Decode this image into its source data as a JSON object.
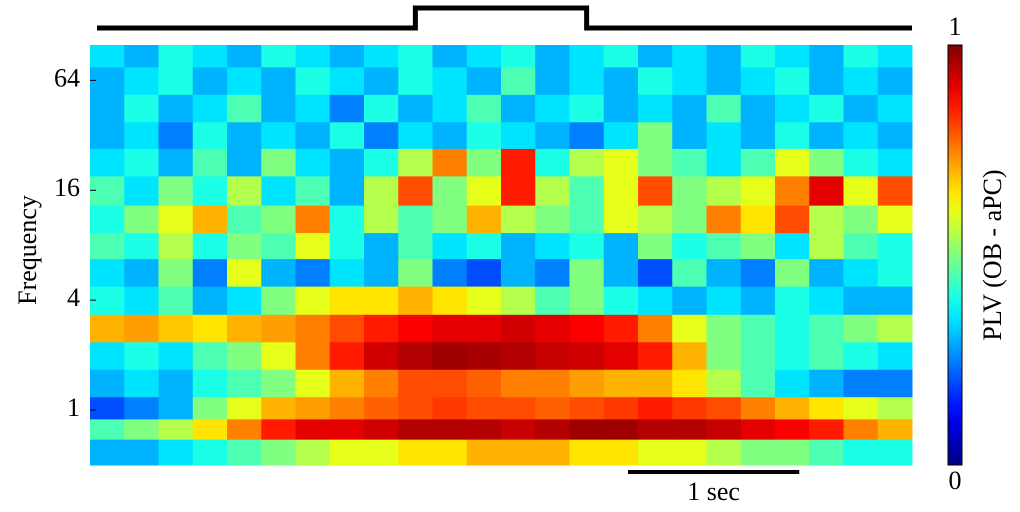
{
  "chart_data": {
    "type": "heatmap",
    "y_label": "Frequency",
    "y_scale": "log2",
    "ylim": [
      0.5,
      100
    ],
    "yticks": [
      1,
      4,
      16,
      64
    ],
    "xlim": [
      0,
      4.8
    ],
    "x": [
      0.1,
      0.3,
      0.5,
      0.7,
      0.9,
      1.1,
      1.3,
      1.5,
      1.7,
      1.9,
      2.1,
      2.3,
      2.5,
      2.7,
      2.9,
      3.1,
      3.3,
      3.5,
      3.7,
      3.9,
      4.1,
      4.3,
      4.5,
      4.7
    ],
    "y": [
      0.6,
      0.8,
      1,
      1.4,
      2,
      2.8,
      4,
      5.7,
      8,
      11,
      16,
      23,
      32,
      45,
      64,
      90
    ],
    "z": [
      [
        0.3,
        0.3,
        0.35,
        0.4,
        0.45,
        0.5,
        0.55,
        0.6,
        0.6,
        0.65,
        0.65,
        0.7,
        0.7,
        0.7,
        0.65,
        0.65,
        0.6,
        0.6,
        0.55,
        0.5,
        0.5,
        0.45,
        0.4,
        0.4
      ],
      [
        0.45,
        0.5,
        0.55,
        0.65,
        0.75,
        0.85,
        0.9,
        0.9,
        0.92,
        0.95,
        0.95,
        0.95,
        0.93,
        0.95,
        0.97,
        0.97,
        0.95,
        0.95,
        0.93,
        0.9,
        0.88,
        0.85,
        0.75,
        0.7
      ],
      [
        0.2,
        0.25,
        0.3,
        0.5,
        0.6,
        0.7,
        0.72,
        0.75,
        0.78,
        0.8,
        0.82,
        0.8,
        0.8,
        0.78,
        0.8,
        0.82,
        0.85,
        0.82,
        0.8,
        0.75,
        0.7,
        0.65,
        0.6,
        0.55
      ],
      [
        0.3,
        0.35,
        0.3,
        0.4,
        0.45,
        0.5,
        0.6,
        0.7,
        0.75,
        0.8,
        0.8,
        0.78,
        0.75,
        0.75,
        0.72,
        0.7,
        0.7,
        0.65,
        0.55,
        0.45,
        0.35,
        0.3,
        0.25,
        0.25
      ],
      [
        0.35,
        0.4,
        0.35,
        0.45,
        0.5,
        0.6,
        0.75,
        0.85,
        0.92,
        0.95,
        0.97,
        0.96,
        0.95,
        0.93,
        0.92,
        0.9,
        0.85,
        0.7,
        0.5,
        0.45,
        0.4,
        0.45,
        0.4,
        0.35
      ],
      [
        0.7,
        0.72,
        0.68,
        0.65,
        0.7,
        0.72,
        0.75,
        0.8,
        0.85,
        0.88,
        0.9,
        0.9,
        0.92,
        0.9,
        0.88,
        0.85,
        0.75,
        0.6,
        0.5,
        0.45,
        0.4,
        0.45,
        0.5,
        0.55
      ],
      [
        0.4,
        0.35,
        0.45,
        0.3,
        0.35,
        0.5,
        0.6,
        0.65,
        0.65,
        0.7,
        0.65,
        0.6,
        0.55,
        0.45,
        0.5,
        0.4,
        0.35,
        0.3,
        0.35,
        0.3,
        0.4,
        0.35,
        0.3,
        0.3
      ],
      [
        0.35,
        0.3,
        0.5,
        0.25,
        0.6,
        0.3,
        0.25,
        0.35,
        0.3,
        0.5,
        0.25,
        0.2,
        0.3,
        0.25,
        0.5,
        0.3,
        0.2,
        0.45,
        0.3,
        0.25,
        0.5,
        0.3,
        0.35,
        0.4
      ],
      [
        0.45,
        0.4,
        0.55,
        0.4,
        0.5,
        0.45,
        0.6,
        0.4,
        0.3,
        0.45,
        0.35,
        0.4,
        0.3,
        0.35,
        0.4,
        0.3,
        0.5,
        0.4,
        0.45,
        0.5,
        0.35,
        0.55,
        0.45,
        0.4
      ],
      [
        0.4,
        0.5,
        0.6,
        0.7,
        0.45,
        0.5,
        0.75,
        0.4,
        0.55,
        0.45,
        0.5,
        0.7,
        0.55,
        0.5,
        0.45,
        0.6,
        0.55,
        0.5,
        0.75,
        0.65,
        0.8,
        0.55,
        0.5,
        0.6
      ],
      [
        0.45,
        0.35,
        0.5,
        0.4,
        0.55,
        0.35,
        0.45,
        0.3,
        0.55,
        0.8,
        0.5,
        0.6,
        0.85,
        0.55,
        0.45,
        0.6,
        0.8,
        0.5,
        0.55,
        0.6,
        0.75,
        0.9,
        0.6,
        0.8
      ],
      [
        0.35,
        0.4,
        0.3,
        0.45,
        0.3,
        0.5,
        0.35,
        0.3,
        0.4,
        0.55,
        0.75,
        0.5,
        0.85,
        0.4,
        0.55,
        0.6,
        0.5,
        0.45,
        0.35,
        0.45,
        0.6,
        0.5,
        0.4,
        0.35
      ],
      [
        0.3,
        0.35,
        0.25,
        0.4,
        0.3,
        0.35,
        0.3,
        0.4,
        0.25,
        0.35,
        0.3,
        0.4,
        0.35,
        0.3,
        0.25,
        0.35,
        0.5,
        0.3,
        0.35,
        0.3,
        0.4,
        0.3,
        0.35,
        0.3
      ],
      [
        0.3,
        0.4,
        0.3,
        0.35,
        0.45,
        0.3,
        0.35,
        0.25,
        0.4,
        0.3,
        0.35,
        0.45,
        0.3,
        0.35,
        0.4,
        0.3,
        0.35,
        0.3,
        0.45,
        0.3,
        0.35,
        0.4,
        0.3,
        0.35
      ],
      [
        0.3,
        0.35,
        0.4,
        0.3,
        0.35,
        0.3,
        0.4,
        0.35,
        0.3,
        0.4,
        0.35,
        0.3,
        0.45,
        0.3,
        0.35,
        0.3,
        0.4,
        0.35,
        0.3,
        0.35,
        0.4,
        0.3,
        0.35,
        0.3
      ],
      [
        0.35,
        0.3,
        0.4,
        0.35,
        0.3,
        0.4,
        0.35,
        0.3,
        0.35,
        0.4,
        0.3,
        0.35,
        0.4,
        0.3,
        0.35,
        0.4,
        0.3,
        0.35,
        0.3,
        0.4,
        0.35,
        0.3,
        0.4,
        0.35
      ]
    ],
    "colormap": "jet",
    "clim": [
      0,
      1
    ],
    "cticks": [
      0,
      1
    ],
    "colorbar_label": "PLV (OB - aPC)",
    "stimulus": [
      1.9,
      2.9
    ],
    "scale_bar": {
      "length": 1,
      "label": "1 sec"
    }
  }
}
